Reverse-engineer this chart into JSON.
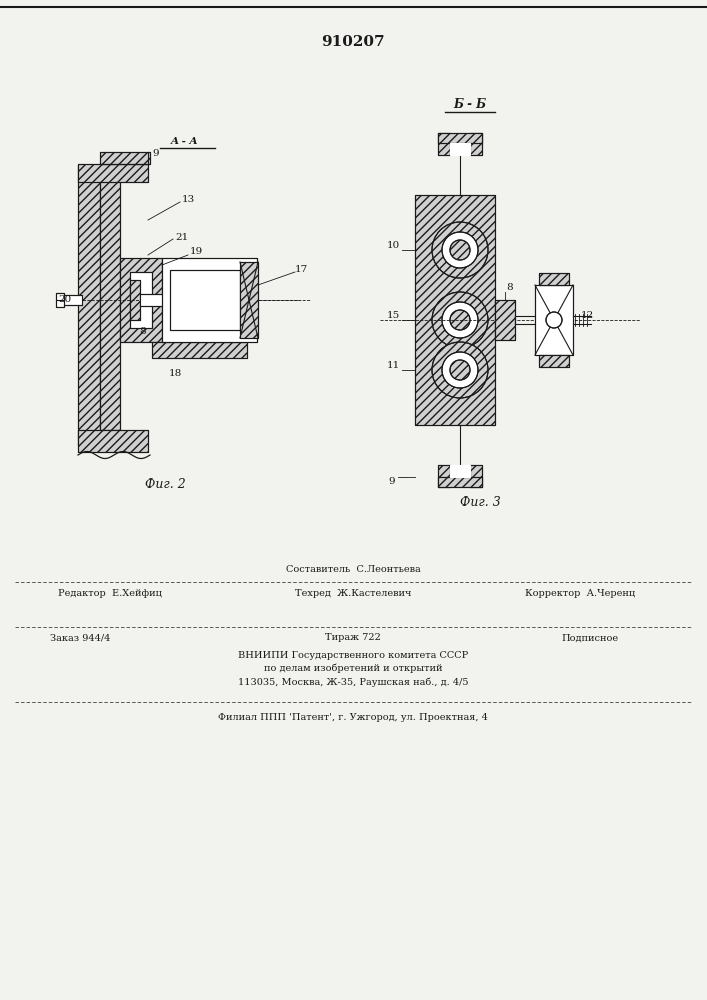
{
  "title": "910207",
  "bg_color": "#f2f2ee",
  "line_color": "#1a1a1a",
  "fig2_label": "Фиг. 2",
  "fig3_label": "Фиг. 3",
  "section_aa": "A - A",
  "section_bb": "Б - Б"
}
